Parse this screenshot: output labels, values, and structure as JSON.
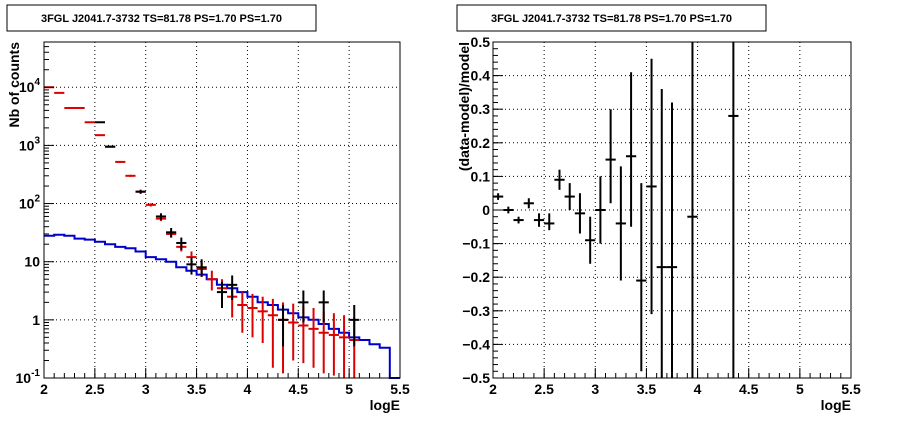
{
  "chart_data": [
    {
      "type": "line",
      "title": "3FGL J2041.7-3732 TS=81.78 PS=1.70 PS=1.70",
      "xlabel": "logE",
      "ylabel": "Nb of counts",
      "xlim": [
        2,
        5.5
      ],
      "ylim": [
        0.1,
        60000
      ],
      "yscale": "log",
      "grid": true,
      "x_ticks": [
        "2",
        "2.5",
        "3",
        "3.5",
        "4",
        "4.5",
        "5",
        "5.5"
      ],
      "y_ticks": [
        {
          "v": 0.1,
          "base": "10",
          "exp": "-1"
        },
        {
          "v": 1,
          "base": "1",
          "exp": ""
        },
        {
          "v": 10,
          "base": "10",
          "exp": ""
        },
        {
          "v": 100,
          "base": "10",
          "exp": "2"
        },
        {
          "v": 1000,
          "base": "10",
          "exp": "3"
        },
        {
          "v": 10000,
          "base": "10",
          "exp": "4"
        }
      ],
      "bin_width": 0.1,
      "colors": {
        "data": "#000000",
        "model": "#dd0000",
        "background": "#0000cc"
      },
      "data_points": [
        {
          "x": 2.55,
          "y": 2500,
          "lo": 2450,
          "hi": 2550
        },
        {
          "x": 2.65,
          "y": 950,
          "lo": 920,
          "hi": 980
        },
        {
          "x": 2.95,
          "y": 160,
          "lo": 147,
          "hi": 173
        },
        {
          "x": 3.15,
          "y": 60,
          "lo": 52,
          "hi": 68
        },
        {
          "x": 3.25,
          "y": 32,
          "lo": 26,
          "hi": 38
        },
        {
          "x": 3.35,
          "y": 21,
          "lo": 16,
          "hi": 26
        },
        {
          "x": 3.45,
          "y": 9,
          "lo": 6,
          "hi": 12
        },
        {
          "x": 3.55,
          "y": 8,
          "lo": 5.5,
          "hi": 11
        },
        {
          "x": 3.75,
          "y": 3,
          "lo": 1.6,
          "hi": 4.5
        },
        {
          "x": 3.85,
          "y": 4,
          "lo": 2.2,
          "hi": 5.8
        },
        {
          "x": 4.35,
          "y": 1,
          "lo": 0.35,
          "hi": 1.8
        },
        {
          "x": 4.55,
          "y": 2,
          "lo": 0.9,
          "hi": 3.2
        },
        {
          "x": 4.75,
          "y": 2,
          "lo": 0.9,
          "hi": 3.2
        },
        {
          "x": 5.05,
          "y": 1,
          "lo": 0.35,
          "hi": 1.8
        }
      ],
      "model_points": [
        {
          "x": 2.05,
          "y": 10000,
          "lo": 9800,
          "hi": 10200
        },
        {
          "x": 2.15,
          "y": 8000,
          "lo": 7850,
          "hi": 8150
        },
        {
          "x": 2.25,
          "y": 4400,
          "lo": 4300,
          "hi": 4500
        },
        {
          "x": 2.35,
          "y": 4400,
          "lo": 4300,
          "hi": 4500
        },
        {
          "x": 2.45,
          "y": 2500,
          "lo": 2450,
          "hi": 2550
        },
        {
          "x": 2.55,
          "y": 1500,
          "lo": 1460,
          "hi": 1540
        },
        {
          "x": 2.65,
          "y": 950,
          "lo": 920,
          "hi": 980
        },
        {
          "x": 2.75,
          "y": 520,
          "lo": 500,
          "hi": 540
        },
        {
          "x": 2.85,
          "y": 300,
          "lo": 288,
          "hi": 312
        },
        {
          "x": 2.95,
          "y": 160,
          "lo": 152,
          "hi": 168
        },
        {
          "x": 3.05,
          "y": 95,
          "lo": 89,
          "hi": 101
        },
        {
          "x": 3.15,
          "y": 55,
          "lo": 50,
          "hi": 60
        },
        {
          "x": 3.25,
          "y": 30,
          "lo": 26,
          "hi": 34
        },
        {
          "x": 3.35,
          "y": 18,
          "lo": 15,
          "hi": 21
        },
        {
          "x": 3.45,
          "y": 12,
          "lo": 9,
          "hi": 15
        },
        {
          "x": 3.55,
          "y": 7.5,
          "lo": 5.5,
          "hi": 9.5
        },
        {
          "x": 3.65,
          "y": 5,
          "lo": 3.2,
          "hi": 7
        },
        {
          "x": 3.75,
          "y": 3.5,
          "lo": 2,
          "hi": 5
        },
        {
          "x": 3.85,
          "y": 2.5,
          "lo": 1.1,
          "hi": 4
        },
        {
          "x": 3.95,
          "y": 1.8,
          "lo": 0.6,
          "hi": 3
        },
        {
          "x": 4.05,
          "y": 1.6,
          "lo": 0.5,
          "hi": 2.8
        },
        {
          "x": 4.15,
          "y": 1.4,
          "lo": 0.4,
          "hi": 2.5
        },
        {
          "x": 4.25,
          "y": 1.2,
          "lo": 0.15,
          "hi": 2.3
        },
        {
          "x": 4.35,
          "y": 1.0,
          "lo": 0.12,
          "hi": 2.0
        },
        {
          "x": 4.45,
          "y": 0.9,
          "lo": 0.2,
          "hi": 1.9
        },
        {
          "x": 4.55,
          "y": 0.8,
          "lo": 0.18,
          "hi": 1.7
        },
        {
          "x": 4.65,
          "y": 0.7,
          "lo": 0.15,
          "hi": 1.6
        },
        {
          "x": 4.75,
          "y": 0.6,
          "lo": 0.12,
          "hi": 1.4
        },
        {
          "x": 4.85,
          "y": 0.55,
          "lo": 0.11,
          "hi": 1.3
        },
        {
          "x": 4.95,
          "y": 0.5,
          "lo": 0.1,
          "hi": 1.2
        },
        {
          "x": 5.05,
          "y": 0.45,
          "lo": 0.1,
          "hi": 1.1
        }
      ],
      "background_steps": [
        {
          "x0": 2.0,
          "y": 28
        },
        {
          "x0": 2.1,
          "y": 29
        },
        {
          "x0": 2.2,
          "y": 28
        },
        {
          "x0": 2.3,
          "y": 25
        },
        {
          "x0": 2.4,
          "y": 24
        },
        {
          "x0": 2.5,
          "y": 22
        },
        {
          "x0": 2.6,
          "y": 20
        },
        {
          "x0": 2.7,
          "y": 18
        },
        {
          "x0": 2.8,
          "y": 17
        },
        {
          "x0": 2.9,
          "y": 15
        },
        {
          "x0": 3.0,
          "y": 12
        },
        {
          "x0": 3.1,
          "y": 11
        },
        {
          "x0": 3.2,
          "y": 10
        },
        {
          "x0": 3.3,
          "y": 8
        },
        {
          "x0": 3.4,
          "y": 7
        },
        {
          "x0": 3.5,
          "y": 6
        },
        {
          "x0": 3.6,
          "y": 5
        },
        {
          "x0": 3.7,
          "y": 4
        },
        {
          "x0": 3.8,
          "y": 3.5
        },
        {
          "x0": 3.9,
          "y": 3
        },
        {
          "x0": 4.0,
          "y": 2.5
        },
        {
          "x0": 4.1,
          "y": 2.0
        },
        {
          "x0": 4.2,
          "y": 1.8
        },
        {
          "x0": 4.3,
          "y": 1.5
        },
        {
          "x0": 4.4,
          "y": 1.3
        },
        {
          "x0": 4.5,
          "y": 1.1
        },
        {
          "x0": 4.6,
          "y": 1.0
        },
        {
          "x0": 4.7,
          "y": 0.85
        },
        {
          "x0": 4.8,
          "y": 0.7
        },
        {
          "x0": 4.9,
          "y": 0.6
        },
        {
          "x0": 5.0,
          "y": 0.5
        },
        {
          "x0": 5.1,
          "y": 0.45
        },
        {
          "x0": 5.2,
          "y": 0.38
        },
        {
          "x0": 5.3,
          "y": 0.33
        },
        {
          "x0": 5.4,
          "y": 0.1
        }
      ]
    },
    {
      "type": "scatter",
      "title": "3FGL J2041.7-3732 TS=81.78 PS=1.70 PS=1.70",
      "xlabel": "logE",
      "ylabel": "(data-model)/model",
      "xlim": [
        2,
        5.5
      ],
      "ylim": [
        -0.5,
        0.5
      ],
      "grid": true,
      "x_ticks": [
        "2",
        "2.5",
        "3",
        "3.5",
        "4",
        "4.5",
        "5",
        "5.5"
      ],
      "y_ticks": [
        "-0.5",
        "-0.4",
        "-0.3",
        "-0.2",
        "-0.1",
        "0",
        "0.1",
        "0.2",
        "0.3",
        "0.4",
        "0.5"
      ],
      "bin_width": 0.1,
      "points": [
        {
          "x": 2.05,
          "y": 0.04,
          "lo": 0.03,
          "hi": 0.05
        },
        {
          "x": 2.15,
          "y": 0.0,
          "lo": -0.01,
          "hi": 0.01
        },
        {
          "x": 2.25,
          "y": -0.03,
          "lo": -0.04,
          "hi": -0.02
        },
        {
          "x": 2.35,
          "y": 0.02,
          "lo": 0.005,
          "hi": 0.035
        },
        {
          "x": 2.45,
          "y": -0.03,
          "lo": -0.05,
          "hi": -0.01
        },
        {
          "x": 2.55,
          "y": -0.04,
          "lo": -0.06,
          "hi": -0.01
        },
        {
          "x": 2.65,
          "y": 0.09,
          "lo": 0.06,
          "hi": 0.12
        },
        {
          "x": 2.75,
          "y": 0.04,
          "lo": 0.0,
          "hi": 0.08
        },
        {
          "x": 2.85,
          "y": -0.01,
          "lo": -0.07,
          "hi": 0.05
        },
        {
          "x": 2.95,
          "y": -0.09,
          "lo": -0.16,
          "hi": -0.02
        },
        {
          "x": 3.05,
          "y": 0.0,
          "lo": -0.1,
          "hi": 0.1
        },
        {
          "x": 3.15,
          "y": 0.15,
          "lo": 0.02,
          "hi": 0.3
        },
        {
          "x": 3.25,
          "y": -0.04,
          "lo": -0.21,
          "hi": 0.13
        },
        {
          "x": 3.35,
          "y": 0.16,
          "lo": -0.05,
          "hi": 0.41
        },
        {
          "x": 3.45,
          "y": -0.21,
          "lo": -0.48,
          "hi": 0.08
        },
        {
          "x": 3.55,
          "y": 0.07,
          "lo": -0.31,
          "hi": 0.45
        },
        {
          "x": 3.65,
          "y": -0.17,
          "lo": -0.5,
          "hi": 0.36
        },
        {
          "x": 3.75,
          "y": -0.17,
          "lo": -0.5,
          "hi": 0.32
        },
        {
          "x": 3.95,
          "y": -0.02,
          "lo": -0.5,
          "hi": 0.5
        },
        {
          "x": 4.35,
          "y": 0.28,
          "lo": -0.5,
          "hi": 0.5
        }
      ]
    }
  ]
}
